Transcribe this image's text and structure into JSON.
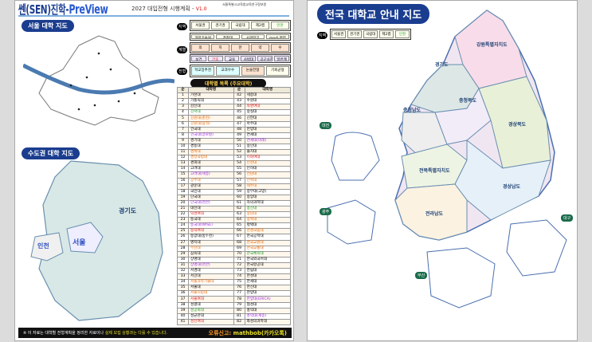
{
  "left": {
    "brand": "쎈(SEN)진학-",
    "brand_pv": "PreView",
    "subtitle": "2027 대입전형 시행계획 - ",
    "version": "V1.0",
    "org": "서울특별시교육청교육연구정보원",
    "seoul_map_title": "서울 대학 지도",
    "metro_map_title": "수도권 대학 지도",
    "metro_labels": [
      "경기도",
      "인천",
      "서울"
    ],
    "legend": {
      "region_tag": "지역",
      "region": [
        "서울권",
        "경기권",
        "국립대",
        "제2캠",
        "인천"
      ],
      "special": [
        "과학기술원",
        "경찰대",
        "사관학교",
        "medi·면접"
      ],
      "field_tag": "계열",
      "fields": [
        "의",
        "치",
        "한",
        "약",
        "수"
      ],
      "field_sub": [
        "수시",
        "정시"
      ],
      "fields2": [
        "보건",
        "간호",
        "교육",
        "사범대",
        "공군사관",
        "일반계"
      ],
      "type_tag": "전형",
      "types": [
        "학교장추천",
        "교과우수",
        "논술전형",
        "기회균형"
      ]
    },
    "list_title": "대학별 목록 (주요대학)",
    "list_headers": [
      "순",
      "대학명",
      "순",
      "대학명"
    ],
    "universities": [
      [
        "가천대",
        "#000"
      ],
      [
        "가톨릭대",
        "#000"
      ],
      [
        "감신대",
        "#000"
      ],
      [
        "강서대",
        "#1a9a2a"
      ],
      [
        "강원대(춘천)",
        "#f06a00"
      ],
      [
        "강원대(삼척)",
        "#f06a00"
      ],
      [
        "건국대",
        "#000"
      ],
      [
        "건국대(글로컬)",
        "#9a2ae0"
      ],
      [
        "경기대",
        "#000"
      ],
      [
        "경동대",
        "#000"
      ],
      [
        "경북대",
        "#f06a00"
      ],
      [
        "경상국립대",
        "#f06a00"
      ],
      [
        "경희대",
        "#000"
      ],
      [
        "고려대",
        "#000"
      ],
      [
        "고려대(세종)",
        "#9a2ae0"
      ],
      [
        "공주대",
        "#f06a00"
      ],
      [
        "광운대",
        "#000"
      ],
      [
        "국민대",
        "#000"
      ],
      [
        "단국대",
        "#000"
      ],
      [
        "단국대(천안)",
        "#9a2ae0"
      ],
      [
        "대진대",
        "#000"
      ],
      [
        "덕성여대",
        "#e02020"
      ],
      [
        "동국대",
        "#000"
      ],
      [
        "동국대(WISE)",
        "#9a2ae0"
      ],
      [
        "동덕여대",
        "#e02020"
      ],
      [
        "동양대(동두천)",
        "#000"
      ],
      [
        "명지대",
        "#000"
      ],
      [
        "부산대",
        "#f06a00"
      ],
      [
        "삼육대",
        "#000"
      ],
      [
        "상명대",
        "#000"
      ],
      [
        "상명대(천안)",
        "#9a2ae0"
      ],
      [
        "서경대",
        "#000"
      ],
      [
        "서강대",
        "#000"
      ],
      [
        "서울과학기술대",
        "#f06a00"
      ],
      [
        "서울대",
        "#000"
      ],
      [
        "서울시립대",
        "#f06a00"
      ],
      [
        "서울여대",
        "#e02020"
      ],
      [
        "성결대",
        "#000"
      ],
      [
        "성공회대",
        "#1a9a2a"
      ],
      [
        "성균관대",
        "#000"
      ],
      [
        "성신여대",
        "#e02020"
      ],
      [
        "세종대",
        "#000"
      ],
      [
        "수원대",
        "#000"
      ],
      [
        "숙명여대",
        "#e02020"
      ],
      [
        "숭실대",
        "#000"
      ],
      [
        "신한대",
        "#000"
      ],
      [
        "아주대",
        "#000"
      ],
      [
        "안양대",
        "#000"
      ],
      [
        "연세대",
        "#000"
      ],
      [
        "연세대(미래)",
        "#9a2ae0"
      ],
      [
        "용인대",
        "#000"
      ],
      [
        "을지대",
        "#000"
      ],
      [
        "이화여대",
        "#e02020"
      ],
      [
        "인천대",
        "#f06a00"
      ],
      [
        "인하대",
        "#000"
      ],
      [
        "전남대",
        "#f06a00"
      ],
      [
        "전북대",
        "#f06a00"
      ],
      [
        "제주대",
        "#f06a00"
      ],
      [
        "중부대(고양)",
        "#000"
      ],
      [
        "중앙대",
        "#000"
      ],
      [
        "차의과학대",
        "#000"
      ],
      [
        "총신대",
        "#1a9a2a"
      ],
      [
        "충남대",
        "#f06a00"
      ],
      [
        "충북대",
        "#f06a00"
      ],
      [
        "평택대",
        "#000"
      ],
      [
        "한경국립대",
        "#f06a00"
      ],
      [
        "한국공학대",
        "#000"
      ],
      [
        "한국교원대",
        "#f06a00"
      ],
      [
        "한국교통대",
        "#f06a00"
      ],
      [
        "한국체육대",
        "#1a9a2a"
      ],
      [
        "한국외국어대",
        "#000"
      ],
      [
        "한국항공대",
        "#000"
      ],
      [
        "한림대",
        "#000"
      ],
      [
        "한성대",
        "#000"
      ],
      [
        "한세대",
        "#000"
      ],
      [
        "한신대",
        "#000"
      ],
      [
        "한양대",
        "#000"
      ],
      [
        "한양대(ERICA)",
        "#9a2ae0"
      ],
      [
        "협성대",
        "#000"
      ],
      [
        "홍익대",
        "#000"
      ],
      [
        "홍익대(세종)",
        "#9a2ae0"
      ],
      [
        "화성의과학대",
        "#000"
      ]
    ],
    "footer_note": "※ 이 자료는 대학별 전형계획을 정리한 자료이나 ",
    "footer_note_hl": "실제 모집 상황과는 다를 수 있습니다.",
    "footer_report": "오류신고: ",
    "footer_contact": "mathbob(카카오톡)"
  },
  "right": {
    "title": "전국 대학교 안내 지도",
    "region_tag": "지역",
    "region": [
      "서울권",
      "경기권",
      "국립대",
      "제2캠",
      "인천"
    ],
    "provinces": [
      "강원특별자치도",
      "경기도",
      "충청북도",
      "충청남도",
      "경상북도",
      "전북특별자치도",
      "경상남도",
      "전라남도"
    ],
    "cities": [
      "대전",
      "광주",
      "대구",
      "부산"
    ]
  },
  "colors": {
    "brand": "#1a3d8f",
    "national": "#f06a00",
    "branch": "#9a2ae0",
    "women": "#e02020",
    "other": "#1a9a2a"
  }
}
